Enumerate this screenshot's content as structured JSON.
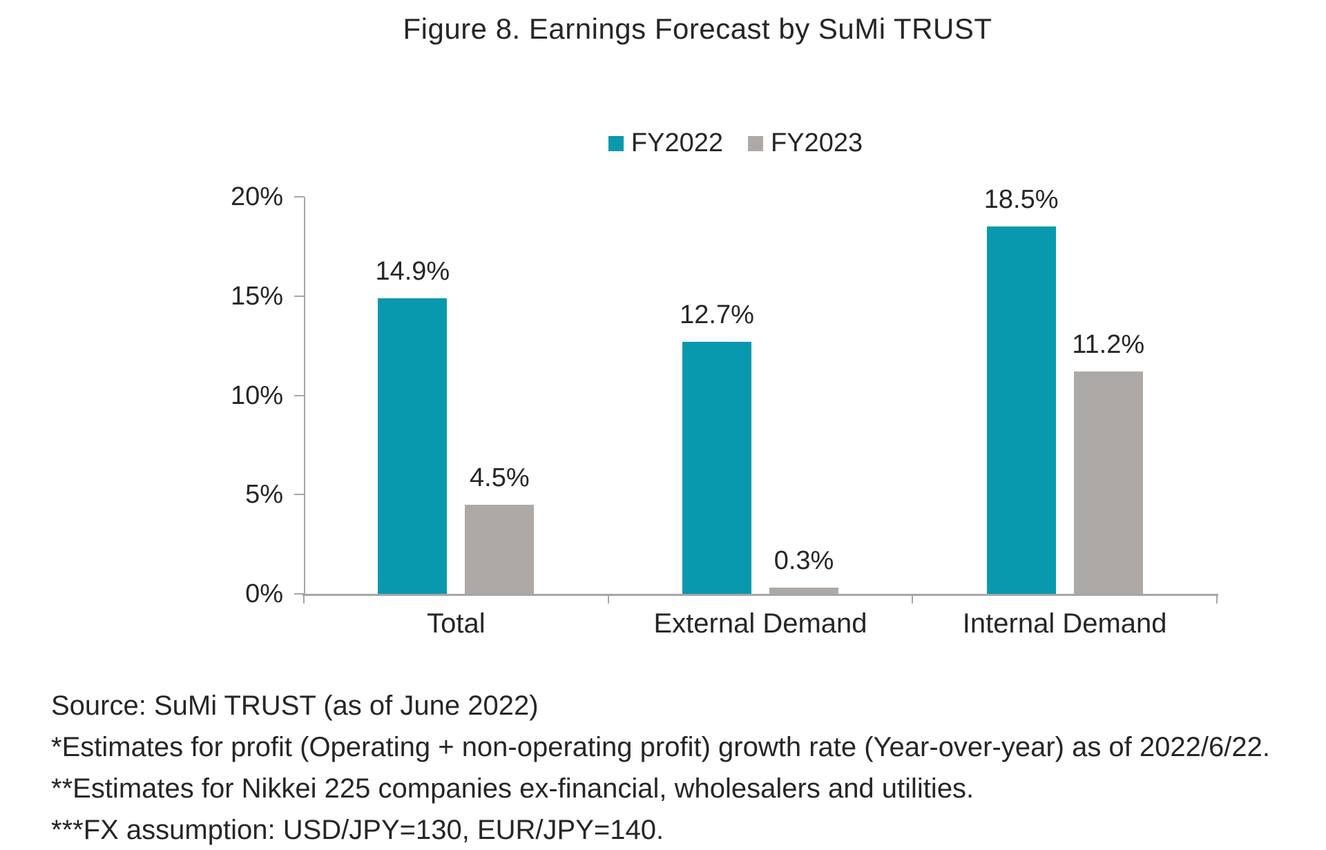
{
  "title": "Figure 8. Earnings Forecast by SuMi TRUST",
  "chart_data": {
    "type": "bar",
    "title": "Figure 8. Earnings Forecast by SuMi TRUST",
    "categories": [
      "Total",
      "External Demand",
      "Internal Demand"
    ],
    "series": [
      {
        "name": "FY2022",
        "color": "#0999ae",
        "values": [
          14.9,
          12.7,
          18.5
        ]
      },
      {
        "name": "FY2023",
        "color": "#aca9a6",
        "values": [
          4.5,
          0.3,
          11.2
        ]
      }
    ],
    "data_labels": {
      "FY2022": [
        "14.9%",
        "12.7%",
        "18.5%"
      ],
      "FY2023": [
        "4.5%",
        "0.3%",
        "11.2%"
      ]
    },
    "ylabel": "",
    "xlabel": "",
    "ylim": [
      0,
      20
    ],
    "yticks": [
      "0%",
      "5%",
      "10%",
      "15%",
      "20%"
    ],
    "grid": false,
    "legend_position": "top-center",
    "axis_color": "#a6a6a6",
    "text_color": "#262626"
  },
  "footnotes": {
    "source": "Source: SuMi TRUST (as of June 2022)",
    "note1": "*Estimates for profit (Operating + non-operating profit) growth rate (Year-over-year) as of 2022/6/22.",
    "note2": "**Estimates for Nikkei 225 companies ex-financial, wholesalers and utilities.",
    "note3": "***FX assumption: USD/JPY=130, EUR/JPY=140."
  }
}
